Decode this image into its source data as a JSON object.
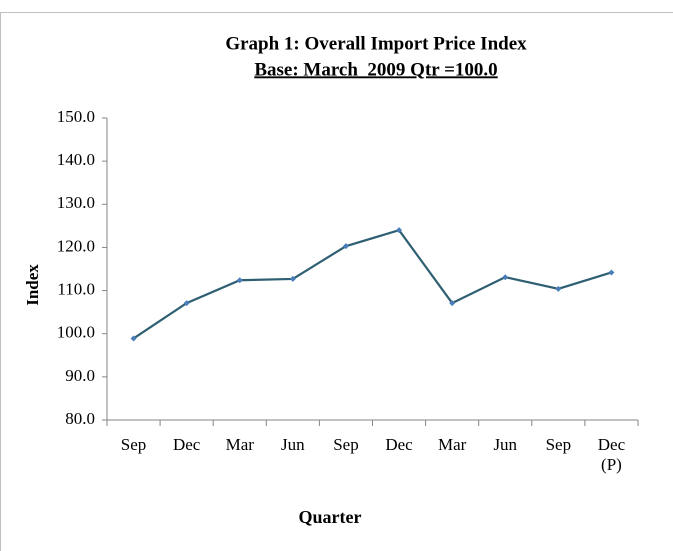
{
  "chart_data": {
    "type": "line",
    "title": "Graph 1: Overall Import Price Index",
    "subtitle": "Base: March  2009 Qtr =100.0",
    "y_label": "Index",
    "x_label": "Quarter",
    "categories": [
      "Sep",
      "Dec",
      "Mar",
      "Jun",
      "Sep",
      "Dec",
      "Mar",
      "Jun",
      "Sep",
      "Dec (P)"
    ],
    "series": [
      {
        "name": "Overall Import Price Index",
        "color": "#2f5f72",
        "marker_color": "#4a7ebb",
        "values": [
          98.9,
          107.1,
          112.4,
          112.7,
          120.3,
          124.0,
          107.1,
          113.1,
          110.4,
          114.2
        ]
      }
    ],
    "ylim": [
      80,
      150
    ],
    "yticks": [
      {
        "value": 80,
        "label": "80.0"
      },
      {
        "value": 90,
        "label": "90.0"
      },
      {
        "value": 100,
        "label": "100.0"
      },
      {
        "value": 110,
        "label": "110.0"
      },
      {
        "value": 120,
        "label": "120.0"
      },
      {
        "value": 130,
        "label": "130.0"
      },
      {
        "value": 140,
        "label": "140.0"
      },
      {
        "value": 150,
        "label": "150.0"
      }
    ],
    "grid": false
  }
}
